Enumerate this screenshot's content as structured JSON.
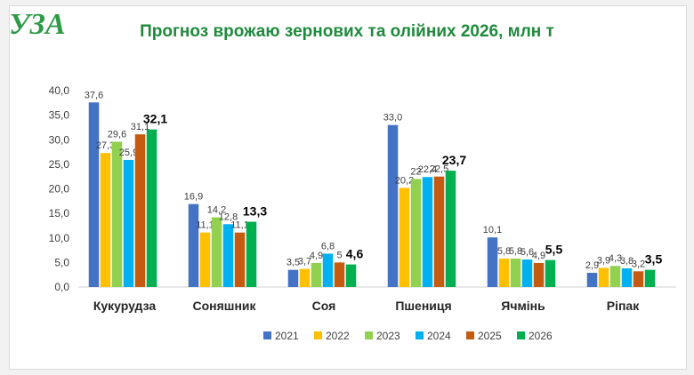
{
  "logo": {
    "text": "УЗА"
  },
  "chart_data": {
    "type": "bar",
    "title": "Прогноз врожаю зернових та олійних 2026, млн т",
    "categories": [
      "Кукурудза",
      "Соняшник",
      "Соя",
      "Пшениця",
      "Ячмінь",
      "Ріпак"
    ],
    "ylim": [
      0,
      40
    ],
    "y_ticks": [
      "0,0",
      "5,0",
      "10,0",
      "15,0",
      "20,0",
      "25,0",
      "30,0",
      "35,0",
      "40,0"
    ],
    "grid": false,
    "legend_position": "bottom",
    "series": [
      {
        "name": "2021",
        "color": "#4472c4",
        "values": [
          37.6,
          16.9,
          3.5,
          33.0,
          10.1,
          2.9
        ],
        "labels": [
          "37,6",
          "16,9",
          "3,5",
          "33,0",
          "10,1",
          "2,9"
        ]
      },
      {
        "name": "2022",
        "color": "#ffc000",
        "values": [
          27.3,
          11.1,
          3.7,
          20.2,
          5.8,
          3.9
        ],
        "labels": [
          "27,3",
          "11,1",
          "3,7",
          "20,2",
          "5,8",
          "3,9"
        ]
      },
      {
        "name": "2023",
        "color": "#92d050",
        "values": [
          29.6,
          14.2,
          4.9,
          22.0,
          5.8,
          4.3
        ],
        "labels": [
          "29,6",
          "14,2",
          "4,9",
          "22",
          "5,8",
          "4,3"
        ]
      },
      {
        "name": "2024",
        "color": "#00b0f0",
        "values": [
          25.9,
          12.8,
          6.8,
          22.4,
          5.6,
          3.8
        ],
        "labels": [
          "25,9",
          "12,8",
          "6,8",
          "22,4",
          "5,6",
          "3,8"
        ]
      },
      {
        "name": "2025",
        "color": "#c55a11",
        "values": [
          31.1,
          11.1,
          5.0,
          22.5,
          4.9,
          3.2
        ],
        "labels": [
          "31,1",
          "11,1",
          "5",
          "22,5",
          "4,9",
          "3,2"
        ]
      },
      {
        "name": "2026",
        "color": "#00b050",
        "values": [
          32.1,
          13.3,
          4.6,
          23.7,
          5.5,
          3.5
        ],
        "labels": [
          "32,1",
          "13,3",
          "4,6",
          "23,7",
          "5,5",
          "3,5"
        ]
      }
    ]
  }
}
